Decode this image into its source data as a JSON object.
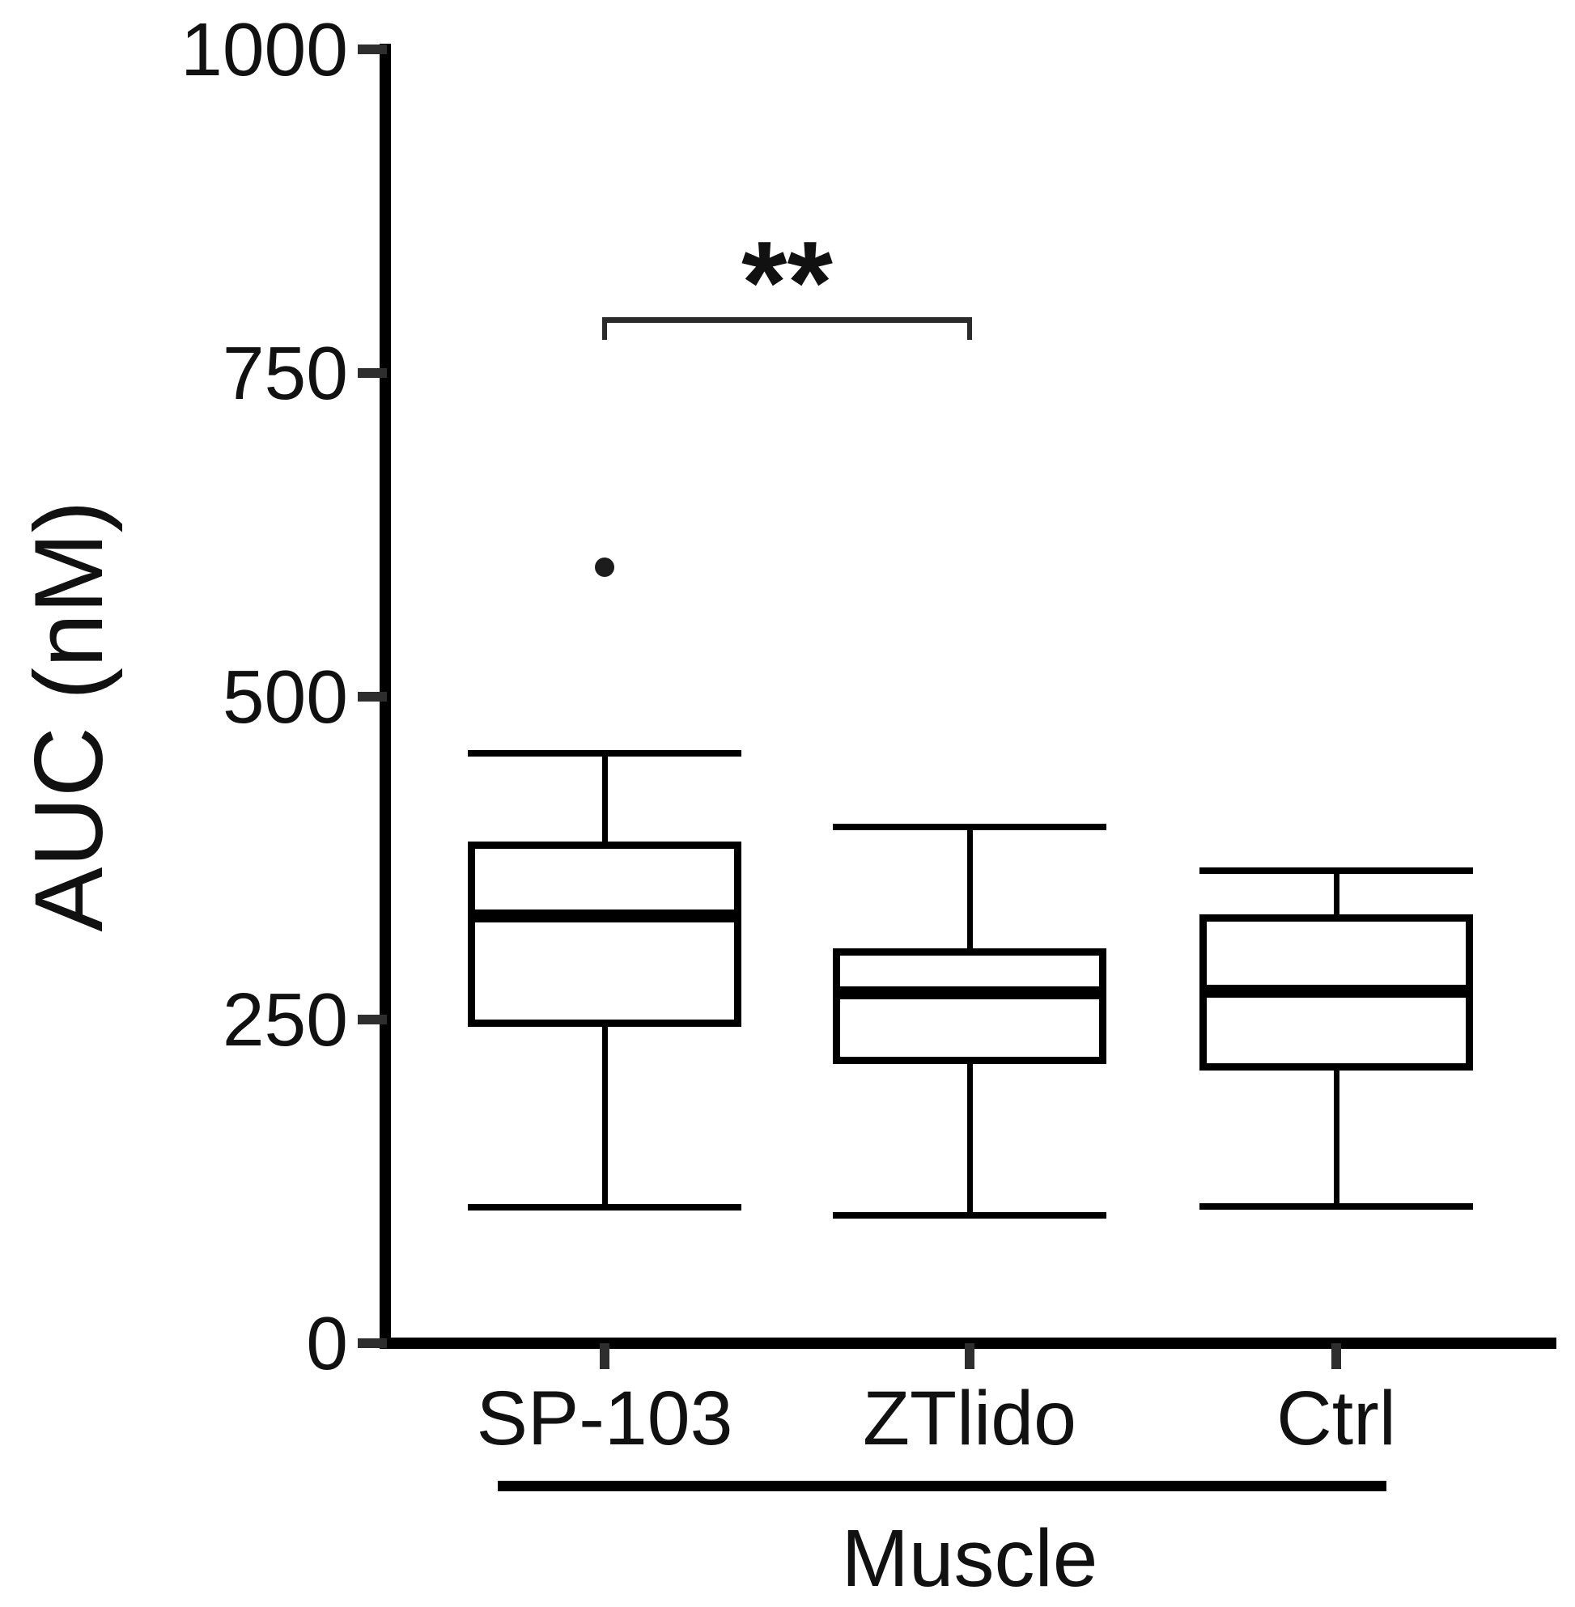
{
  "figure": {
    "background": "#ffffff",
    "ink_color": "#000000"
  },
  "chart_data": {
    "type": "boxplot",
    "title": "",
    "categories": [
      "SP-103",
      "ZTlido",
      "Ctrl"
    ],
    "series": [
      {
        "name": "SP-103",
        "min": 105,
        "q1": 247,
        "median": 330,
        "q3": 385,
        "max": 456,
        "outliers": [
          600
        ]
      },
      {
        "name": "ZTlido",
        "min": 99,
        "q1": 218,
        "median": 271,
        "q3": 303,
        "max": 399,
        "outliers": []
      },
      {
        "name": "Ctrl",
        "min": 106,
        "q1": 213,
        "median": 272,
        "q3": 329,
        "max": 365,
        "outliers": []
      }
    ],
    "xlabel": "Muscle",
    "ylabel": "AUC (nM)",
    "ylim": [
      0,
      1000
    ],
    "y_ticks": [
      0,
      250,
      500,
      750,
      1000
    ],
    "grid": false,
    "legend": false
  },
  "y_axis": {
    "ticks": [
      {
        "value": 0,
        "label": "0"
      },
      {
        "value": 250,
        "label": "250"
      },
      {
        "value": 500,
        "label": "500"
      },
      {
        "value": 750,
        "label": "750"
      },
      {
        "value": 1000,
        "label": "1000"
      }
    ]
  },
  "x_axis": {
    "labels": [
      "SP-103",
      "ZTlido",
      "Ctrl"
    ],
    "group_label": "Muscle"
  },
  "annotations": {
    "significance": {
      "label": "**",
      "from": "SP-103",
      "to": "ZTlido",
      "level": 791
    }
  }
}
